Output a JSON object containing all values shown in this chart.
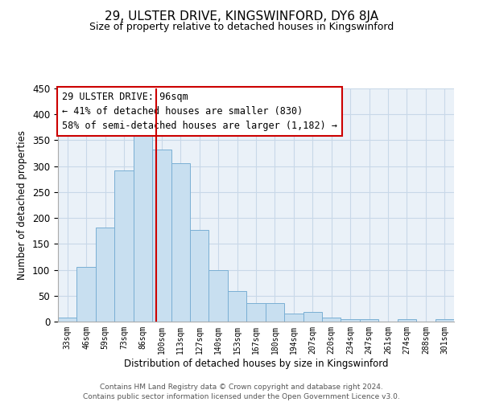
{
  "title": "29, ULSTER DRIVE, KINGSWINFORD, DY6 8JA",
  "subtitle": "Size of property relative to detached houses in Kingswinford",
  "xlabel": "Distribution of detached houses by size in Kingswinford",
  "ylabel": "Number of detached properties",
  "footer_line1": "Contains HM Land Registry data © Crown copyright and database right 2024.",
  "footer_line2": "Contains public sector information licensed under the Open Government Licence v3.0.",
  "categories": [
    "33sqm",
    "46sqm",
    "59sqm",
    "73sqm",
    "86sqm",
    "100sqm",
    "113sqm",
    "127sqm",
    "140sqm",
    "153sqm",
    "167sqm",
    "180sqm",
    "194sqm",
    "207sqm",
    "220sqm",
    "234sqm",
    "247sqm",
    "261sqm",
    "274sqm",
    "288sqm",
    "301sqm"
  ],
  "values": [
    8,
    105,
    181,
    291,
    367,
    332,
    305,
    177,
    100,
    59,
    36,
    36,
    15,
    19,
    7,
    5,
    5,
    0,
    5,
    0,
    4
  ],
  "bar_color": "#c8dff0",
  "bar_edge_color": "#7aafd4",
  "property_label": "29 ULSTER DRIVE: 96sqm",
  "annotation_line1": "← 41% of detached houses are smaller (830)",
  "annotation_line2": "58% of semi-detached houses are larger (1,182) →",
  "annotation_box_color": "#ffffff",
  "annotation_box_edge": "#cc0000",
  "property_line_color": "#cc0000",
  "ylim": [
    0,
    450
  ],
  "yticks": [
    0,
    50,
    100,
    150,
    200,
    250,
    300,
    350,
    400,
    450
  ],
  "bg_color": "#eaf1f8",
  "fig_bg": "#ffffff",
  "grid_color": "#c8d8e8"
}
